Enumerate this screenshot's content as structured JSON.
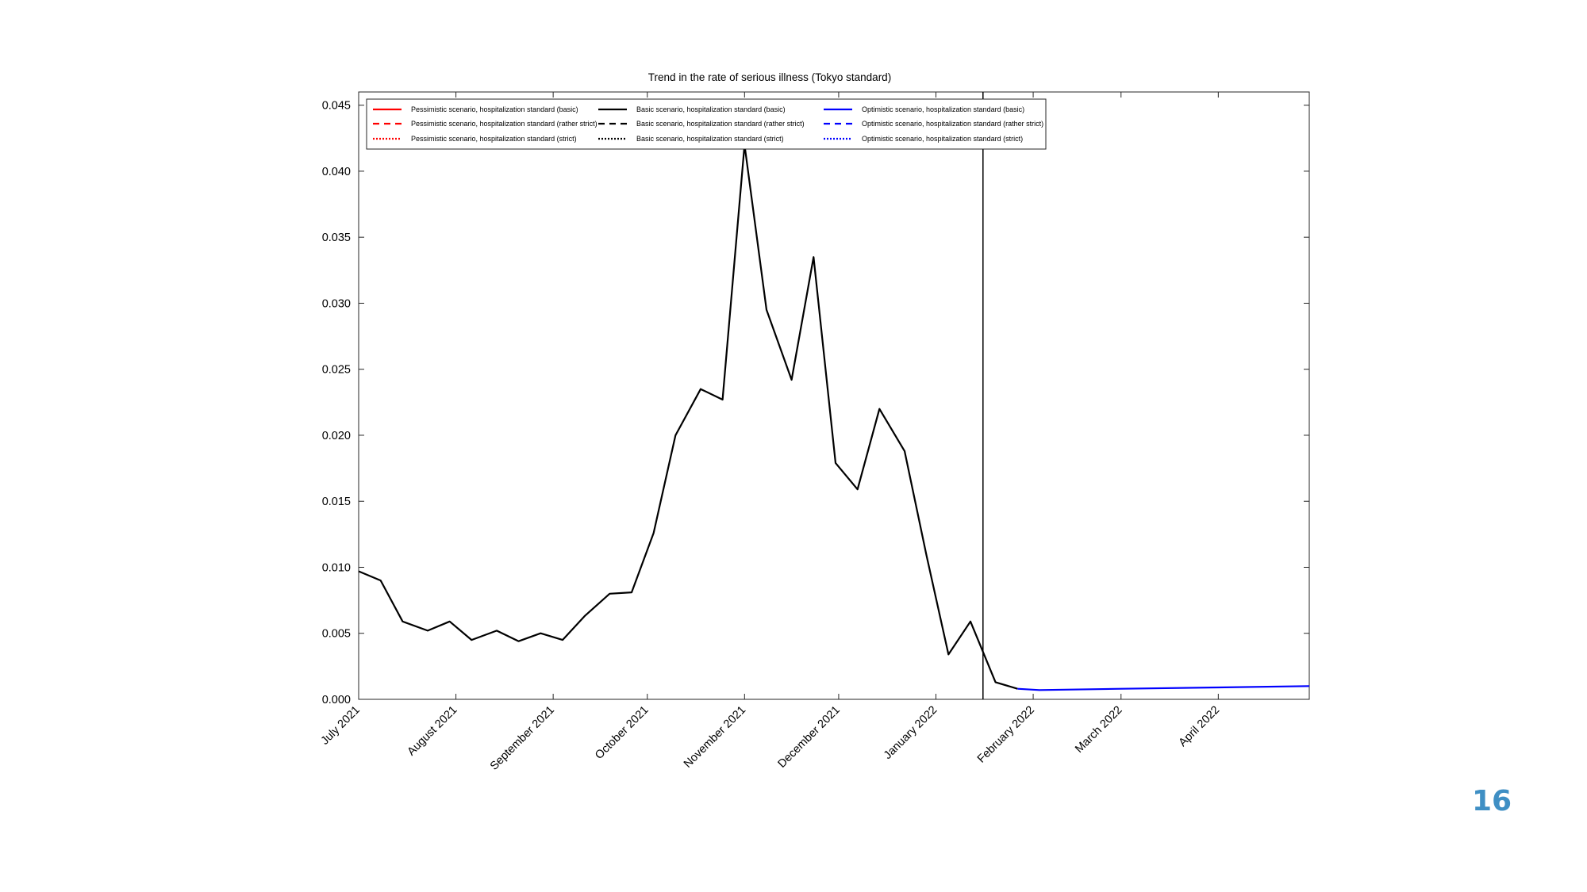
{
  "slide": {
    "page_number": "16",
    "page_number_color": "#3f8fc4"
  },
  "chart_data": {
    "type": "line",
    "title": "Trend in the rate of serious illness (Tokyo standard)",
    "xlabel": "",
    "ylabel": "",
    "x_axis": {
      "type": "date",
      "min": "2021-07-01",
      "max": "2022-04-30",
      "ticks": [
        {
          "date": "2021-07-01",
          "label": "July 2021"
        },
        {
          "date": "2021-08-01",
          "label": "August 2021"
        },
        {
          "date": "2021-09-01",
          "label": "September 2021"
        },
        {
          "date": "2021-10-01",
          "label": "October 2021"
        },
        {
          "date": "2021-11-01",
          "label": "November 2021"
        },
        {
          "date": "2021-12-01",
          "label": "December 2021"
        },
        {
          "date": "2022-01-01",
          "label": "January 2022"
        },
        {
          "date": "2022-02-01",
          "label": "February 2022"
        },
        {
          "date": "2022-03-01",
          "label": "March 2022"
        },
        {
          "date": "2022-04-01",
          "label": "April 2022"
        }
      ]
    },
    "y_axis": {
      "min": 0,
      "max": 0.046,
      "ticks": [
        {
          "value": 0,
          "label": "0.000"
        },
        {
          "value": 0.005,
          "label": "0.005"
        },
        {
          "value": 0.01,
          "label": "0.010"
        },
        {
          "value": 0.015,
          "label": "0.015"
        },
        {
          "value": 0.02,
          "label": "0.020"
        },
        {
          "value": 0.025,
          "label": "0.025"
        },
        {
          "value": 0.03,
          "label": "0.030"
        },
        {
          "value": 0.035,
          "label": "0.035"
        },
        {
          "value": 0.04,
          "label": "0.040"
        },
        {
          "value": 0.045,
          "label": "0.045"
        }
      ]
    },
    "grid": false,
    "legend_position": "top-left",
    "marker_line_date": "2022-01-16",
    "series": [
      {
        "name": "Pessimistic scenario, hospitalization standard (basic)",
        "color": "#ff0000",
        "dash": "solid",
        "points": []
      },
      {
        "name": "Pessimistic scenario, hospitalization standard (rather strict)",
        "color": "#ff0000",
        "dash": "dashed",
        "points": []
      },
      {
        "name": "Pessimistic scenario, hospitalization standard (strict)",
        "color": "#ff0000",
        "dash": "dotted",
        "points": []
      },
      {
        "name": "Basic scenario, hospitalization standard (basic)",
        "color": "#000000",
        "dash": "solid",
        "points": [
          [
            "2021-07-01",
            0.0097
          ],
          [
            "2021-07-08",
            0.009
          ],
          [
            "2021-07-15",
            0.0059
          ],
          [
            "2021-07-23",
            0.0052
          ],
          [
            "2021-07-30",
            0.0059
          ],
          [
            "2021-08-06",
            0.0045
          ],
          [
            "2021-08-14",
            0.0052
          ],
          [
            "2021-08-21",
            0.0044
          ],
          [
            "2021-08-28",
            0.005
          ],
          [
            "2021-09-04",
            0.0045
          ],
          [
            "2021-09-11",
            0.0063
          ],
          [
            "2021-09-19",
            0.008
          ],
          [
            "2021-09-26",
            0.0081
          ],
          [
            "2021-10-03",
            0.0126
          ],
          [
            "2021-10-10",
            0.02
          ],
          [
            "2021-10-18",
            0.0235
          ],
          [
            "2021-10-25",
            0.0227
          ],
          [
            "2021-11-01",
            0.042
          ],
          [
            "2021-11-08",
            0.0295
          ],
          [
            "2021-11-16",
            0.0242
          ],
          [
            "2021-11-23",
            0.0335
          ],
          [
            "2021-11-30",
            0.0179
          ],
          [
            "2021-12-07",
            0.0159
          ],
          [
            "2021-12-14",
            0.022
          ],
          [
            "2021-12-22",
            0.0188
          ],
          [
            "2021-12-29",
            0.0109
          ],
          [
            "2022-01-05",
            0.0034
          ],
          [
            "2022-01-12",
            0.0059
          ],
          [
            "2022-01-20",
            0.0013
          ],
          [
            "2022-01-27",
            0.0008
          ]
        ]
      },
      {
        "name": "Basic scenario, hospitalization standard (rather strict)",
        "color": "#000000",
        "dash": "dashed",
        "points": []
      },
      {
        "name": "Basic scenario, hospitalization standard (strict)",
        "color": "#000000",
        "dash": "dotted",
        "points": []
      },
      {
        "name": "Optimistic scenario, hospitalization standard (basic)",
        "color": "#0000ff",
        "dash": "solid",
        "points": [
          [
            "2022-01-27",
            0.0008
          ],
          [
            "2022-02-03",
            0.0007
          ],
          [
            "2022-03-01",
            0.0008
          ],
          [
            "2022-04-01",
            0.0009
          ],
          [
            "2022-04-30",
            0.001
          ]
        ]
      },
      {
        "name": "Optimistic scenario, hospitalization standard (rather strict)",
        "color": "#0000ff",
        "dash": "dashed",
        "points": []
      },
      {
        "name": "Optimistic scenario, hospitalization standard (strict)",
        "color": "#0000ff",
        "dash": "dotted",
        "points": []
      }
    ]
  }
}
